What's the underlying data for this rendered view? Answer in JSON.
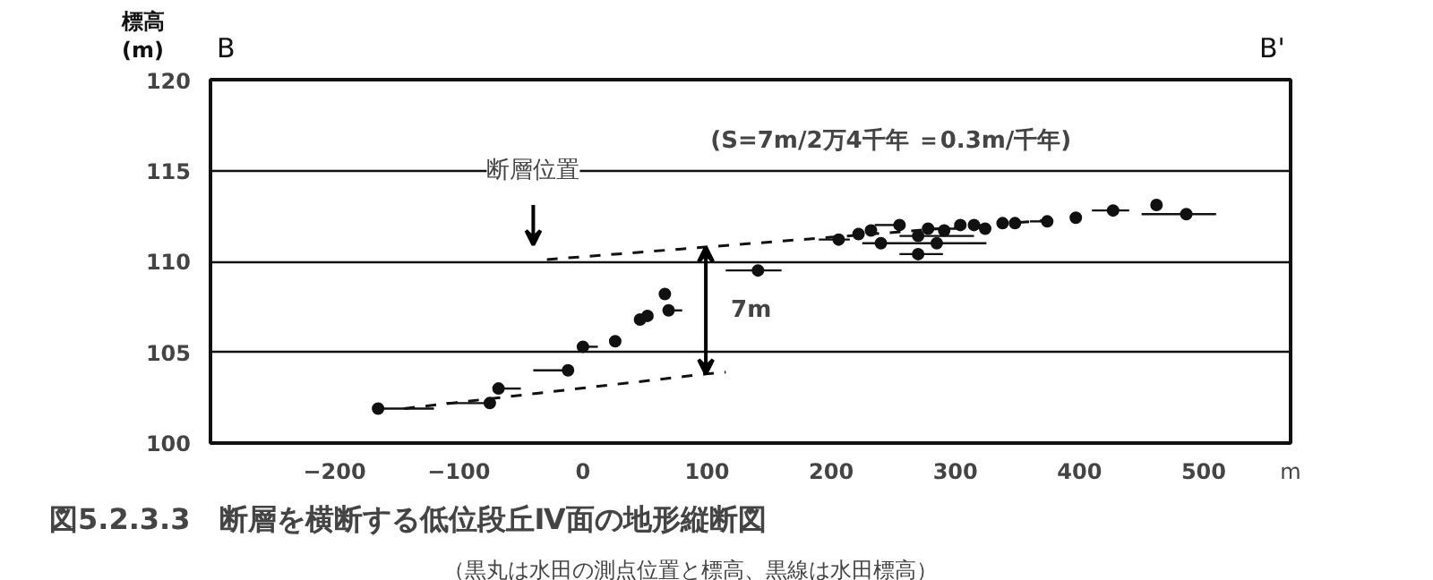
{
  "chart_data": {
    "type": "scatter",
    "title": "図5.2.3.3　断層を横断する低位段丘Ⅳ面の地形縦断図",
    "subtitle": "（黒丸は水田の測点位置と標高、黒線は水田標高）",
    "ylabel": "標高 (m)",
    "xlabel": "m",
    "xlim": [
      -300,
      570
    ],
    "ylim": [
      100,
      120
    ],
    "xticks": [
      -200,
      -100,
      0,
      100,
      200,
      300,
      400,
      500
    ],
    "yticks": [
      100,
      105,
      110,
      115,
      120
    ],
    "grid": "y",
    "annotations": [
      "B",
      "B'",
      "(S=7m/2万4千年 ＝0.3m/千年)",
      "断層位置",
      "7m"
    ],
    "series": [
      {
        "marker": "circle",
        "color": "#111111",
        "x": [
          -165,
          -75,
          -68,
          -12,
          0,
          26,
          46,
          52,
          69,
          66,
          141,
          206,
          222,
          232,
          240,
          255,
          270,
          278,
          270,
          285,
          291,
          304,
          315,
          324,
          338,
          348,
          374,
          397,
          427,
          462,
          486
        ],
        "values": [
          101.9,
          102.2,
          103.0,
          104.0,
          105.3,
          105.6,
          106.8,
          107.0,
          107.3,
          108.2,
          109.5,
          111.2,
          111.5,
          111.7,
          111.0,
          112.0,
          111.4,
          111.8,
          110.4,
          111.0,
          111.7,
          112.0,
          112.0,
          111.8,
          112.1,
          112.1,
          112.2,
          112.4,
          112.8,
          113.1,
          112.6
        ],
        "xerrors": [
          [
            -165,
            -120
          ],
          [
            -110,
            -75
          ],
          [
            -68,
            -50
          ],
          [
            -40,
            -12
          ],
          [
            0,
            12
          ],
          null,
          null,
          null,
          [
            69,
            80
          ],
          null,
          [
            115,
            160
          ],
          [
            190,
            215
          ],
          null,
          null,
          [
            225,
            290
          ],
          [
            235,
            255
          ],
          [
            255,
            315
          ],
          [
            278,
            305
          ],
          [
            255,
            290
          ],
          [
            285,
            325
          ],
          null,
          null,
          null,
          null,
          null,
          null,
          [
            360,
            374
          ],
          null,
          [
            410,
            440
          ],
          null,
          [
            450,
            510
          ]
        ]
      },
      {
        "type": "line",
        "color": "#111111",
        "line_style": "dashed",
        "x": [
          -144,
          99,
          115
        ],
        "values": [
          101.9,
          103.8,
          103.9
        ]
      },
      {
        "type": "line",
        "color": "#111111",
        "line_style": "dashed",
        "x": [
          -29,
          381
        ],
        "values": [
          110.1,
          112.3
        ]
      }
    ]
  }
}
